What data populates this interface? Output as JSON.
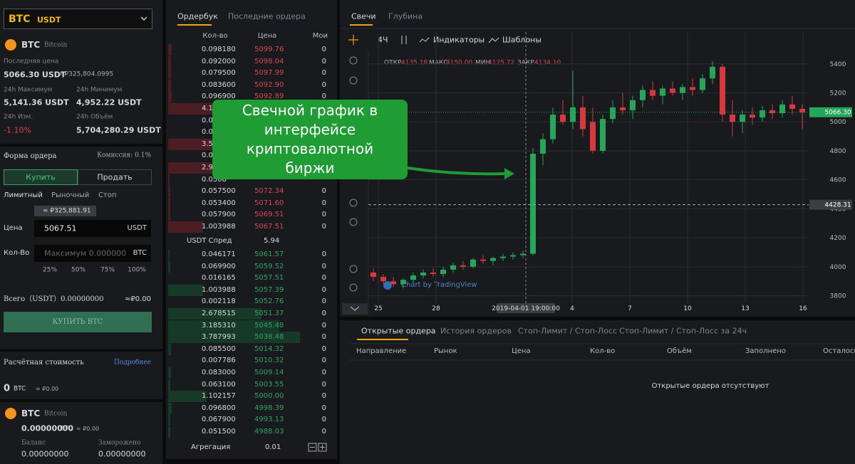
{
  "pair": {
    "symbol": "BTC",
    "quote": "USDT"
  },
  "ticker": {
    "coin": "BTC",
    "coin_name": "Bitcoin",
    "last_price_label": "Последняя цена",
    "last_price": "5066.30 USDT",
    "last_price_fiat": "≈ ₽325,804.0995",
    "high_label": "24h Максимум",
    "high": "5,141.36 USDT",
    "low_label": "24h Минимум",
    "low": "4,952.22 USDT",
    "change_label": "24h Изм.",
    "change": "-1.10%",
    "volume_label": "24h Объём",
    "volume": "5,704,280.29 USDT"
  },
  "order_form": {
    "title": "Форма ордера",
    "fee": "Комиссия: 0.1%",
    "buy_tab": "Купить",
    "sell_tab": "Продать",
    "types": [
      "Лимитный",
      "Рыночный",
      "Стоп"
    ],
    "tooltip": "≈ ₽325,881.91",
    "price_label": "Цена",
    "price": "5067.51",
    "price_unit": "USDT",
    "qty_label": "Кол-Во",
    "qty_placeholder": "Максимум 0.000000",
    "qty_unit": "BTC",
    "percents": [
      "25%",
      "50%",
      "75%",
      "100%"
    ],
    "total": "Всего（USDT）0.00000000",
    "total_fiat": "≈₽0.00",
    "submit": "КУПИТЬ BTC"
  },
  "balance": {
    "title": "Расчётная стоимость",
    "more": "Подробнее",
    "value": "0",
    "unit": "BTC",
    "fiat": "≈ ₽0.00",
    "coin": "BTC",
    "coin_name": "Bitcoin",
    "amount": "0.00000000",
    "amount_unit": "BTC",
    "amount_fiat": "≈ ₽0.00",
    "available_label": "Баланс",
    "available": "0.00000000",
    "frozen_label": "Заморожено",
    "frozen": "0.00000000"
  },
  "orderbook": {
    "tabs": [
      "Ордербук",
      "Последние ордера"
    ],
    "columns": [
      "Кол-во",
      "Цена",
      "Мои"
    ],
    "asks": [
      [
        "0.098180",
        "5099.76",
        "0"
      ],
      [
        "0.092000",
        "5098.04",
        "0"
      ],
      [
        "0.079500",
        "5097.99",
        "0"
      ],
      [
        "0.083600",
        "5092.90",
        "0"
      ],
      [
        "0.096900",
        "5092.89",
        "0"
      ],
      [
        "4.1"
      ],
      [
        "0.0"
      ],
      [
        "0.0"
      ],
      [
        "3.5"
      ],
      [
        "0.0"
      ],
      [
        "2.9"
      ],
      [
        "0.0508"
      ],
      [
        "0.057500",
        "5072.34",
        "0"
      ],
      [
        "0.053400",
        "5071.60",
        "0"
      ],
      [
        "0.057900",
        "5069.51",
        "0"
      ],
      [
        "1.003988",
        "5067.51",
        "0"
      ]
    ],
    "spread_label": "USDT Спред",
    "spread": "5.94",
    "bids": [
      [
        "0.046171",
        "5061.57",
        "0"
      ],
      [
        "0.069900",
        "5059.52",
        "0"
      ],
      [
        "0.016165",
        "5057.51",
        "0"
      ],
      [
        "1.003988",
        "5057.39",
        "0"
      ],
      [
        "0.002118",
        "5052.76",
        "0"
      ],
      [
        "2.678515",
        "5051.37",
        "0"
      ],
      [
        "3.185310",
        "5045.48",
        "0"
      ],
      [
        "3.787993",
        "5038.48",
        "0"
      ],
      [
        "0.085500",
        "5014.32",
        "0"
      ],
      [
        "0.007786",
        "5010.32",
        "0"
      ],
      [
        "0.083000",
        "5009.14",
        "0"
      ],
      [
        "0.063100",
        "5003.55",
        "0"
      ],
      [
        "1.102157",
        "5000.00",
        "0"
      ],
      [
        "0.096800",
        "4998.39",
        "0"
      ],
      [
        "0.067900",
        "4993.13",
        "0"
      ],
      [
        "0.051500",
        "4988.03",
        "0"
      ]
    ],
    "aggregation_label": "Агрегация",
    "aggregation": "0.01"
  },
  "chart": {
    "tabs": [
      "Свечи",
      "Глубина"
    ],
    "interval": "4Ч",
    "indicators": "Индикаторы",
    "templates": "Шаблоны",
    "watermark": "Chart by TradingView",
    "ohlc": {
      "open_label": "ОТКР",
      "open": "4135.18",
      "high_label": "МАКС",
      "high": "4150.00",
      "low_label": "МИН",
      "low": "4125.72",
      "close_label": "ЗАКР",
      "close": "4134.10"
    }
  },
  "chart_data": {
    "type": "candlestick",
    "up_color": "#26a65b",
    "down_color": "#d9363e",
    "ylim": [
      3680,
      5620
    ],
    "yticks": [
      3800,
      4000,
      4200,
      4400,
      4600,
      4800,
      5000,
      5200,
      5400
    ],
    "grid": true,
    "x_labels": [
      "25",
      "28",
      "2019-04-01 19:00:00",
      "4",
      "7",
      "10",
      "13",
      "16"
    ],
    "price_labels": [
      {
        "value": 5066.3,
        "label": "5066.30"
      },
      {
        "value": 4428.31,
        "label": "4428.31"
      }
    ],
    "candles": [
      [
        3960,
        3990,
        3900,
        3930
      ],
      [
        3930,
        3950,
        3880,
        3900
      ],
      [
        3900,
        3930,
        3860,
        3880
      ],
      [
        3880,
        3920,
        3850,
        3910
      ],
      [
        3910,
        3960,
        3890,
        3940
      ],
      [
        3940,
        3980,
        3920,
        3960
      ],
      [
        3960,
        3990,
        3930,
        3950
      ],
      [
        3950,
        4000,
        3930,
        3980
      ],
      [
        3980,
        4030,
        3960,
        4010
      ],
      [
        4010,
        4040,
        3980,
        4000
      ],
      [
        4000,
        4060,
        3990,
        4050
      ],
      [
        4050,
        4080,
        4020,
        4040
      ],
      [
        4040,
        4070,
        4010,
        4060
      ],
      [
        4060,
        4090,
        4040,
        4070
      ],
      [
        4070,
        4100,
        4050,
        4080
      ],
      [
        4080,
        4110,
        4060,
        4090
      ],
      [
        4090,
        4820,
        4080,
        4780
      ],
      [
        4780,
        4920,
        4700,
        4880
      ],
      [
        4880,
        5100,
        4850,
        5050
      ],
      [
        5050,
        5150,
        4980,
        5000
      ],
      [
        5000,
        5350,
        4950,
        5100
      ],
      [
        5100,
        5180,
        4900,
        4950
      ],
      [
        5000,
        5100,
        4780,
        4800
      ],
      [
        4800,
        5050,
        4780,
        5020
      ],
      [
        5020,
        5150,
        4990,
        5100
      ],
      [
        5100,
        5200,
        5050,
        5080
      ],
      [
        5080,
        5180,
        5020,
        5150
      ],
      [
        5150,
        5250,
        5100,
        5220
      ],
      [
        5220,
        5280,
        5150,
        5180
      ],
      [
        5180,
        5250,
        5120,
        5230
      ],
      [
        5230,
        5280,
        5180,
        5200
      ],
      [
        5200,
        5260,
        5150,
        5240
      ],
      [
        5240,
        5300,
        5180,
        5220
      ],
      [
        5220,
        5330,
        5200,
        5300
      ],
      [
        5300,
        5420,
        5260,
        5380
      ],
      [
        5380,
        5400,
        5000,
        5050
      ],
      [
        5050,
        5150,
        4900,
        5000
      ],
      [
        5000,
        5080,
        4920,
        5050
      ],
      [
        5050,
        5100,
        4980,
        5030
      ],
      [
        5030,
        5110,
        5000,
        5080
      ],
      [
        5080,
        5120,
        5020,
        5060
      ],
      [
        5060,
        5150,
        5030,
        5120
      ],
      [
        5120,
        5180,
        5050,
        5090
      ],
      [
        5090,
        5120,
        4950,
        5066.3
      ]
    ]
  },
  "orders": {
    "tabs": [
      "Открытые ордера",
      "История ордеров",
      "Стоп-Лимит / Стоп-Лосс",
      "Стоп-Лимит / Стоп-Лосс за 24ч"
    ],
    "columns": [
      "Направление",
      "Рынок",
      "Цена",
      "Кол-во",
      "Объём",
      "Заполнено",
      "Осталось"
    ],
    "empty": "Открытые ордера отсутствуют"
  },
  "callout": "Свечной график в интерфейсе криптовалютной биржи"
}
